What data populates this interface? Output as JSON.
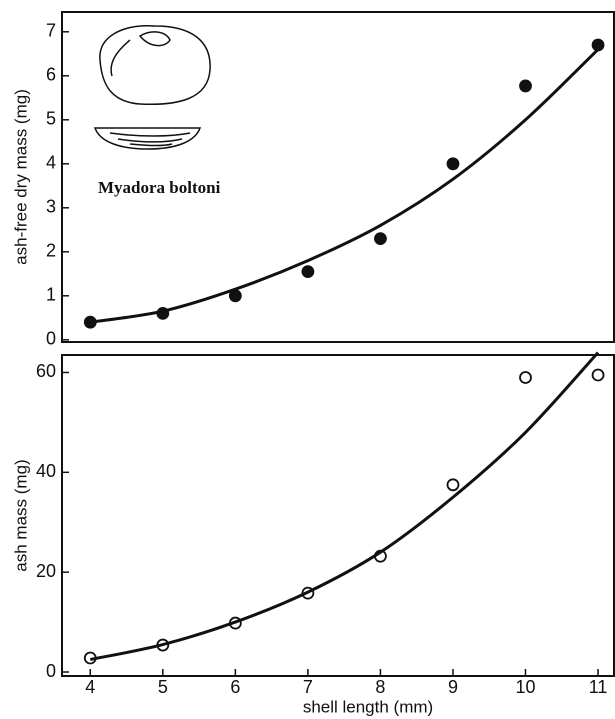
{
  "chart_data": [
    {
      "type": "scatter",
      "ylabel": "ash-free dry mass (mg)",
      "annotation": "Myadora boltoni",
      "x": [
        4,
        5,
        6,
        7,
        8,
        9,
        10,
        11
      ],
      "series": [
        {
          "style": "filled",
          "color": "#111111",
          "values": [
            0.4,
            0.6,
            1.0,
            1.55,
            2.3,
            4.0,
            5.77,
            6.7
          ]
        },
        {
          "style": "line",
          "color": "#111111",
          "values": [
            0.4,
            0.65,
            1.15,
            1.8,
            2.6,
            3.65,
            5.0,
            6.6
          ]
        }
      ],
      "xlim": [
        3.61,
        11.22
      ],
      "ylim": [
        -0.05,
        7.45
      ],
      "yticks": [
        0,
        1,
        2,
        3,
        4,
        5,
        6,
        7
      ]
    },
    {
      "type": "scatter",
      "ylabel": "ash mass (mg)",
      "xlabel": "shell length (mm)",
      "x": [
        4,
        5,
        6,
        7,
        8,
        9,
        10,
        11
      ],
      "series": [
        {
          "style": "open",
          "color": "#111111",
          "values": [
            2.8,
            5.4,
            9.8,
            15.8,
            23.2,
            37.5,
            59,
            59.5
          ]
        },
        {
          "style": "line",
          "color": "#111111",
          "values": [
            2.5,
            5.5,
            10,
            16,
            24,
            35,
            48,
            64
          ]
        }
      ],
      "xlim": [
        3.61,
        11.22
      ],
      "ylim": [
        -0.8,
        63.5
      ],
      "yticks": [
        0,
        20,
        40,
        60
      ],
      "xticks": [
        4,
        5,
        6,
        7,
        8,
        9,
        10,
        11
      ]
    }
  ]
}
